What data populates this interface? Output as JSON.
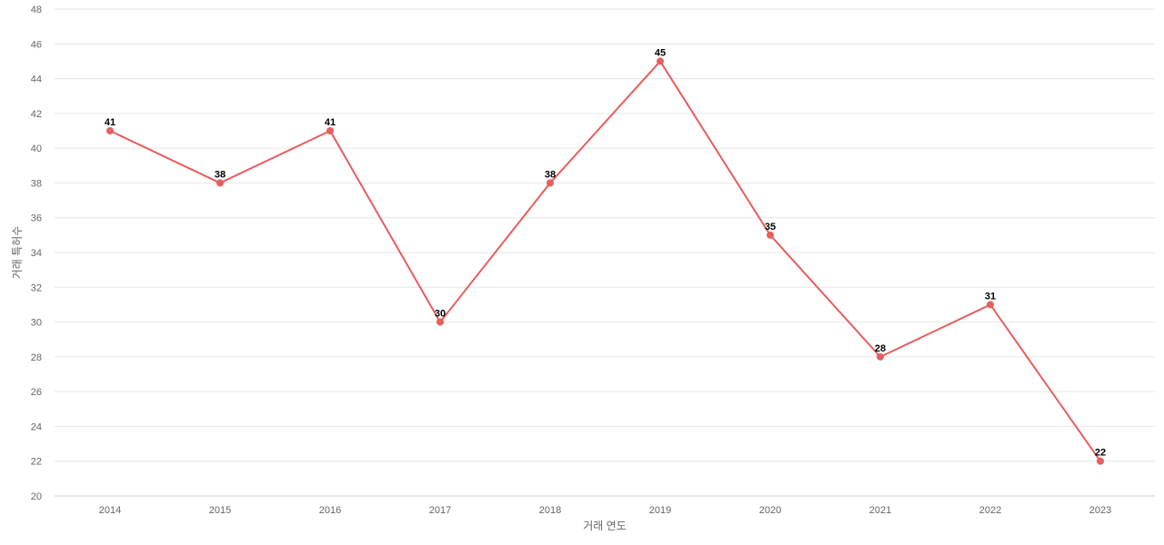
{
  "chart_data": {
    "type": "line",
    "title": "",
    "xlabel": "거래 연도",
    "ylabel": "거래 특허수",
    "categories": [
      "2014",
      "2015",
      "2016",
      "2017",
      "2018",
      "2019",
      "2020",
      "2021",
      "2022",
      "2023"
    ],
    "series": [
      {
        "values": [
          41,
          38,
          41,
          30,
          38,
          45,
          35,
          28,
          31,
          22
        ],
        "color": "#e85d5d"
      }
    ],
    "ylim": [
      20,
      48
    ],
    "yticks": [
      20,
      22,
      24,
      26,
      28,
      30,
      32,
      34,
      36,
      38,
      40,
      42,
      44,
      46,
      48
    ],
    "grid": true,
    "legend": "none",
    "data_labels": true
  }
}
